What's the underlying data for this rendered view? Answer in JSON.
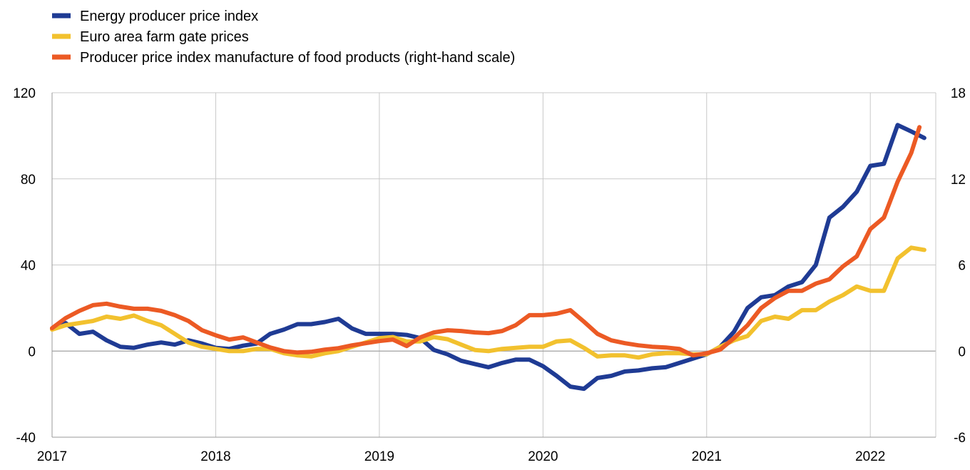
{
  "chart_data": {
    "type": "line",
    "title": "",
    "xlabel": "",
    "ylabel": "",
    "legend_position": "top-left",
    "grid": true,
    "x_ticks": [
      "2017",
      "2018",
      "2019",
      "2020",
      "2021",
      "2022"
    ],
    "x_range": [
      2017.0,
      2022.4
    ],
    "y_left": {
      "ticks": [
        "120",
        "80",
        "40",
        "0",
        "-40"
      ],
      "range": [
        -40,
        120
      ]
    },
    "y_right": {
      "ticks": [
        "18",
        "12",
        "6",
        "0",
        "-6"
      ],
      "range": [
        -6,
        18
      ]
    },
    "series": [
      {
        "name": "Energy producer price index",
        "color": "#1f3b94",
        "axis": "left",
        "x": [
          2017.0,
          2017.083,
          2017.167,
          2017.25,
          2017.333,
          2017.417,
          2017.5,
          2017.583,
          2017.667,
          2017.75,
          2017.833,
          2017.917,
          2018.0,
          2018.083,
          2018.167,
          2018.25,
          2018.333,
          2018.417,
          2018.5,
          2018.583,
          2018.667,
          2018.75,
          2018.833,
          2018.917,
          2019.0,
          2019.083,
          2019.167,
          2019.25,
          2019.333,
          2019.417,
          2019.5,
          2019.583,
          2019.667,
          2019.75,
          2019.833,
          2019.917,
          2020.0,
          2020.083,
          2020.167,
          2020.25,
          2020.333,
          2020.417,
          2020.5,
          2020.583,
          2020.667,
          2020.75,
          2020.833,
          2020.917,
          2021.0,
          2021.083,
          2021.167,
          2021.25,
          2021.333,
          2021.417,
          2021.5,
          2021.583,
          2021.667,
          2021.75,
          2021.833,
          2021.917,
          2022.0,
          2022.083,
          2022.167,
          2022.25,
          2022.33
        ],
        "y": [
          10.5,
          13,
          8,
          9,
          5,
          2,
          1.5,
          3,
          4,
          3,
          5,
          3.5,
          1.5,
          1,
          2.5,
          3.5,
          8,
          10,
          12.5,
          12.5,
          13.5,
          15,
          10.5,
          8,
          8,
          8,
          7.5,
          6,
          0.5,
          -1.5,
          -4.5,
          -6,
          -7.5,
          -5.5,
          -4,
          -4,
          -7,
          -11.5,
          -16.5,
          -17.5,
          -12.5,
          -11.5,
          -9.5,
          -9,
          -8,
          -7.5,
          -5.5,
          -3.5,
          -1.5,
          2,
          9,
          20,
          25,
          26,
          30,
          32,
          40,
          62,
          67,
          74,
          86,
          87,
          105,
          102,
          99
        ]
      },
      {
        "name": "Euro area farm gate prices",
        "color": "#f2c12e",
        "axis": "left",
        "x": [
          2017.0,
          2017.083,
          2017.167,
          2017.25,
          2017.333,
          2017.417,
          2017.5,
          2017.583,
          2017.667,
          2017.75,
          2017.833,
          2017.917,
          2018.0,
          2018.083,
          2018.167,
          2018.25,
          2018.333,
          2018.417,
          2018.5,
          2018.583,
          2018.667,
          2018.75,
          2018.833,
          2018.917,
          2019.0,
          2019.083,
          2019.167,
          2019.25,
          2019.333,
          2019.417,
          2019.5,
          2019.583,
          2019.667,
          2019.75,
          2019.833,
          2019.917,
          2020.0,
          2020.083,
          2020.167,
          2020.25,
          2020.333,
          2020.417,
          2020.5,
          2020.583,
          2020.667,
          2020.75,
          2020.833,
          2020.917,
          2021.0,
          2021.083,
          2021.167,
          2021.25,
          2021.333,
          2021.417,
          2021.5,
          2021.583,
          2021.667,
          2021.75,
          2021.833,
          2021.917,
          2022.0,
          2022.083,
          2022.167,
          2022.25,
          2022.33
        ],
        "y": [
          10,
          12,
          13,
          14,
          16,
          15,
          16.5,
          14,
          12,
          8,
          4,
          2,
          1,
          0,
          0,
          1,
          1,
          -1,
          -2,
          -2.5,
          -1,
          0,
          2,
          4,
          6,
          6.5,
          4.5,
          4.5,
          6.5,
          5.5,
          3,
          0.5,
          0,
          1,
          1.5,
          2,
          2,
          4.5,
          5,
          1.5,
          -2.5,
          -2,
          -2,
          -3,
          -1.5,
          -1,
          -1,
          -1.5,
          -1.5,
          2,
          5,
          7,
          14,
          16,
          15,
          19,
          19,
          23,
          26,
          30,
          28,
          28,
          43,
          48,
          47
        ]
      },
      {
        "name": "Producer price index manufacture of food products (right-hand scale)",
        "color": "#ec5a24",
        "axis": "right",
        "x": [
          2017.0,
          2017.083,
          2017.167,
          2017.25,
          2017.333,
          2017.417,
          2017.5,
          2017.583,
          2017.667,
          2017.75,
          2017.833,
          2017.917,
          2018.0,
          2018.083,
          2018.167,
          2018.25,
          2018.333,
          2018.417,
          2018.5,
          2018.583,
          2018.667,
          2018.75,
          2018.833,
          2018.917,
          2019.0,
          2019.083,
          2019.167,
          2019.25,
          2019.333,
          2019.417,
          2019.5,
          2019.583,
          2019.667,
          2019.75,
          2019.833,
          2019.917,
          2020.0,
          2020.083,
          2020.167,
          2020.25,
          2020.333,
          2020.417,
          2020.5,
          2020.583,
          2020.667,
          2020.75,
          2020.833,
          2020.917,
          2021.0,
          2021.083,
          2021.167,
          2021.25,
          2021.333,
          2021.417,
          2021.5,
          2021.583,
          2021.667,
          2021.75,
          2021.833,
          2021.917,
          2022.0,
          2022.083,
          2022.167,
          2022.25,
          2022.3
        ],
        "y": [
          1.6,
          2.3,
          2.8,
          3.2,
          3.3,
          3.1,
          2.95,
          2.95,
          2.8,
          2.5,
          2.1,
          1.45,
          1.1,
          0.8,
          0.95,
          0.6,
          0.25,
          0.0,
          -0.1,
          -0.05,
          0.1,
          0.2,
          0.4,
          0.55,
          0.7,
          0.8,
          0.35,
          0.95,
          1.3,
          1.45,
          1.4,
          1.3,
          1.25,
          1.4,
          1.8,
          2.5,
          2.5,
          2.6,
          2.85,
          2.05,
          1.2,
          0.75,
          0.55,
          0.4,
          0.3,
          0.25,
          0.15,
          -0.3,
          -0.15,
          0.1,
          0.9,
          1.8,
          3.0,
          3.7,
          4.2,
          4.2,
          4.7,
          5.0,
          5.9,
          6.6,
          8.5,
          9.3,
          11.8,
          13.8,
          15.6
        ]
      }
    ]
  }
}
